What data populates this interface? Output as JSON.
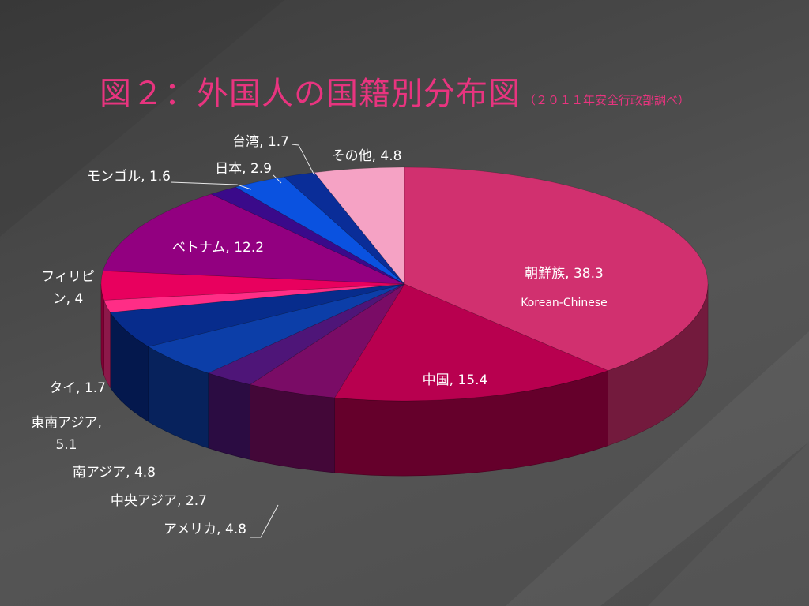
{
  "title": {
    "main": "図２：外国人の国籍別分布図",
    "note": "（２０１１年安全行政部調べ）"
  },
  "colors": {
    "title": "#e8347f",
    "background": "#484848"
  },
  "chart_data": {
    "type": "pie",
    "style": "3d-exploded-view",
    "legend": "none",
    "slices": [
      {
        "name": "朝鮮族",
        "value": 38.3,
        "label": "朝鮮族, 38.3",
        "sublabel": "Korean-Chinese",
        "color": "#d1306f"
      },
      {
        "name": "中国",
        "value": 15.4,
        "label": "中国, 15.4",
        "color": "#b8004f"
      },
      {
        "name": "アメリカ",
        "value": 4.8,
        "label": "アメリカ, 4.8",
        "color": "#7a0c66"
      },
      {
        "name": "中央アジア",
        "value": 2.7,
        "label": "中央アジア, 2.7",
        "color": "#4e1578"
      },
      {
        "name": "南アジア",
        "value": 4.8,
        "label": "南アジア, 4.8",
        "color": "#0c3ea8"
      },
      {
        "name": "東南アジア",
        "value": 5.1,
        "label_lines": [
          "東南アジア,",
          "5.1"
        ],
        "color": "#072c8c"
      },
      {
        "name": "タイ",
        "value": 1.7,
        "label": "タイ, 1.7",
        "color": "#ff2d86"
      },
      {
        "name": "フィリピン",
        "value": 4,
        "label_lines": [
          "フィリピ",
          "ン, 4"
        ],
        "color": "#e8005e"
      },
      {
        "name": "ベトナム",
        "value": 12.2,
        "label": "ベトナム, 12.2",
        "color": "#920080"
      },
      {
        "name": "モンゴル",
        "value": 1.6,
        "label": "モンゴル, 1.6",
        "color": "#3a0a8a"
      },
      {
        "name": "日本",
        "value": 2.9,
        "label": "日本, 2.9",
        "color": "#0a52e0"
      },
      {
        "name": "台湾",
        "value": 1.7,
        "label": "台湾, 1.7",
        "color": "#0a2d98"
      },
      {
        "name": "その他",
        "value": 4.8,
        "label": "その他, 4.8",
        "color": "#f5a2c4"
      }
    ]
  }
}
